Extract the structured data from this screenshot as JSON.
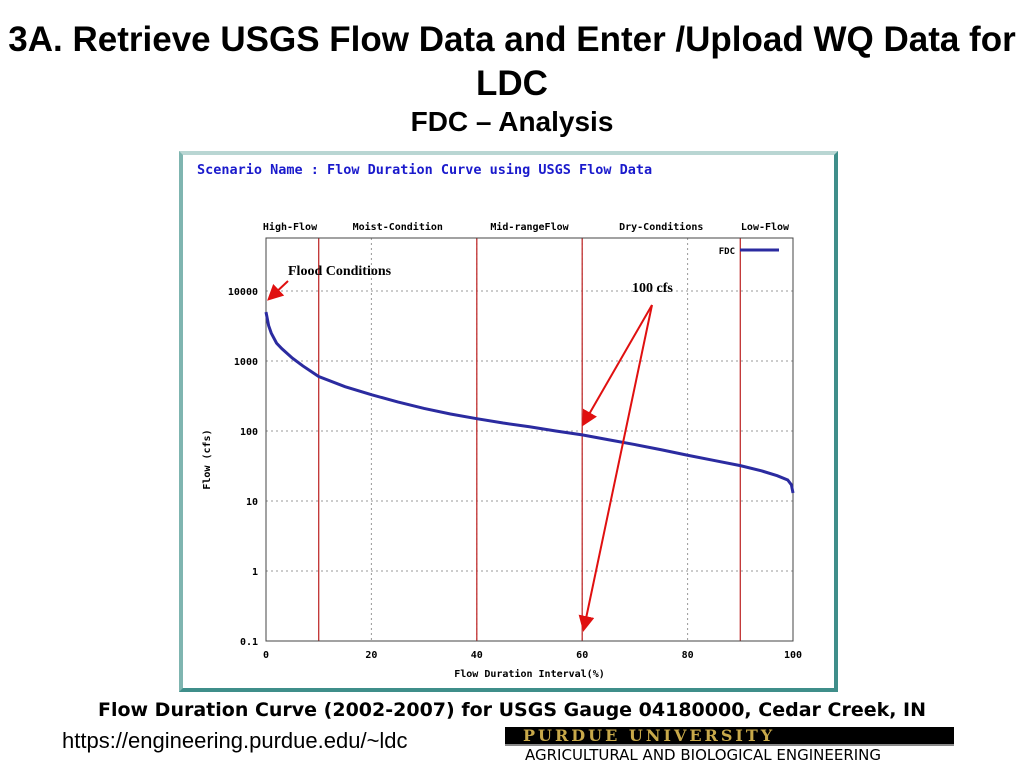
{
  "slide": {
    "title": "3A. Retrieve USGS Flow Data and Enter /Upload WQ Data for LDC",
    "subtitle": "FDC – Analysis",
    "caption": "Flow Duration Curve (2002-2007) for USGS Gauge 04180000, Cedar Creek, IN",
    "url": "https://engineering.purdue.edu/~ldc",
    "logo_top": "PURDUE UNIVERSITY",
    "logo_bottom": "AGRICULTURAL AND BIOLOGICAL ENGINEERING"
  },
  "chart_data": {
    "type": "line",
    "title": "Scenario Name : Flow Duration Curve using USGS Flow Data",
    "xlabel": "Flow Duration Interval(%)",
    "ylabel": "Flow (cfs)",
    "xlim": [
      0,
      100
    ],
    "ylim": [
      0.1,
      50000
    ],
    "yscale": "log",
    "xticks": [
      0,
      20,
      40,
      60,
      80,
      100
    ],
    "yticks": [
      0.1,
      1,
      10,
      100,
      1000,
      10000
    ],
    "ytick_labels": [
      "0.1",
      "1",
      "10",
      "100",
      "1000",
      "10000"
    ],
    "grid": true,
    "legend": {
      "entries": [
        "FDC"
      ],
      "position": "top-right"
    },
    "series": [
      {
        "name": "FDC",
        "color": "#2b2ba0",
        "x": [
          0,
          0.5,
          1,
          2,
          3,
          5,
          7,
          10,
          15,
          20,
          25,
          30,
          35,
          40,
          45,
          50,
          55,
          60,
          65,
          70,
          75,
          80,
          85,
          90,
          94,
          97,
          99,
          99.7,
          100
        ],
        "y": [
          5000,
          3200,
          2500,
          1800,
          1500,
          1100,
          850,
          600,
          430,
          330,
          260,
          210,
          175,
          150,
          130,
          115,
          100,
          88,
          75,
          64,
          54,
          45,
          38,
          32,
          27,
          23,
          20,
          17,
          13
        ]
      }
    ],
    "regions": [
      {
        "label": "High-Flow",
        "from": 0,
        "to": 10
      },
      {
        "label": "Moist-Condition",
        "from": 10,
        "to": 40
      },
      {
        "label": "Mid-rangeFlow",
        "from": 40,
        "to": 60
      },
      {
        "label": "Dry-Conditions",
        "from": 60,
        "to": 90
      },
      {
        "label": "Low-Flow",
        "from": 90,
        "to": 100
      }
    ],
    "region_color": "#c03030",
    "annotations": [
      {
        "text": "Flood Conditions",
        "x": 0,
        "y": 5000
      },
      {
        "text": "100 cfs",
        "x": 60,
        "y": 100
      }
    ]
  }
}
